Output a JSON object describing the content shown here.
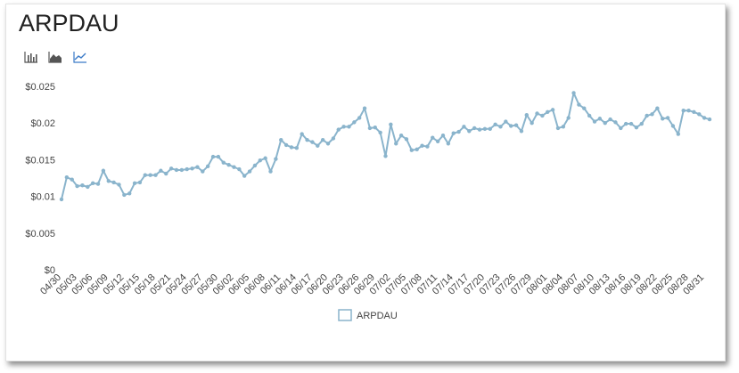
{
  "title": "ARPDAU",
  "toolbar": {
    "icons": [
      "bar-chart-icon",
      "area-chart-icon",
      "line-chart-icon"
    ],
    "active": "line-chart-icon",
    "icon_color": "#555555",
    "active_color": "#3a7ac7"
  },
  "chart_data": {
    "type": "line",
    "title": "ARPDAU",
    "xlabel": "",
    "ylabel": "",
    "ylim": [
      0,
      0.025
    ],
    "yticks": [
      {
        "value": 0,
        "label": "$0"
      },
      {
        "value": 0.005,
        "label": "$0.005"
      },
      {
        "value": 0.01,
        "label": "$0.01"
      },
      {
        "value": 0.015,
        "label": "$0.015"
      },
      {
        "value": 0.02,
        "label": "$0.02"
      },
      {
        "value": 0.025,
        "label": "$0.025"
      }
    ],
    "grid": false,
    "legend": "bottom-center",
    "line_color": "#8ab4cc",
    "x": [
      "04/30",
      "05/01",
      "05/02",
      "05/03",
      "05/04",
      "05/05",
      "05/06",
      "05/07",
      "05/08",
      "05/09",
      "05/10",
      "05/11",
      "05/12",
      "05/13",
      "05/14",
      "05/15",
      "05/16",
      "05/17",
      "05/18",
      "05/19",
      "05/20",
      "05/21",
      "05/22",
      "05/23",
      "05/24",
      "05/25",
      "05/26",
      "05/27",
      "05/28",
      "05/29",
      "05/30",
      "05/31",
      "06/01",
      "06/02",
      "06/03",
      "06/04",
      "06/05",
      "06/06",
      "06/07",
      "06/08",
      "06/09",
      "06/10",
      "06/11",
      "06/12",
      "06/13",
      "06/14",
      "06/15",
      "06/16",
      "06/17",
      "06/18",
      "06/19",
      "06/20",
      "06/21",
      "06/22",
      "06/23",
      "06/24",
      "06/25",
      "06/26",
      "06/27",
      "06/28",
      "06/29",
      "06/30",
      "07/01",
      "07/02",
      "07/03",
      "07/04",
      "07/05",
      "07/06",
      "07/07",
      "07/08",
      "07/09",
      "07/10",
      "07/11",
      "07/12",
      "07/13",
      "07/14",
      "07/15",
      "07/16",
      "07/17",
      "07/18",
      "07/19",
      "07/20",
      "07/21",
      "07/22",
      "07/23",
      "07/24",
      "07/25",
      "07/26",
      "07/27",
      "07/28",
      "07/29",
      "07/30",
      "07/31",
      "08/01",
      "08/02",
      "08/03",
      "08/04",
      "08/05",
      "08/06",
      "08/07",
      "08/08",
      "08/09",
      "08/10",
      "08/11",
      "08/12",
      "08/13",
      "08/14",
      "08/15",
      "08/16",
      "08/17",
      "08/18",
      "08/19",
      "08/20",
      "08/21",
      "08/22",
      "08/23",
      "08/24",
      "08/25",
      "08/26",
      "08/27",
      "08/28",
      "08/29",
      "08/30",
      "08/31",
      "09/01"
    ],
    "xtick_labels": [
      "04/30",
      "05/03",
      "05/06",
      "05/09",
      "05/12",
      "05/15",
      "05/18",
      "05/21",
      "05/24",
      "05/27",
      "05/30",
      "06/02",
      "06/05",
      "06/08",
      "06/11",
      "06/14",
      "06/17",
      "06/20",
      "06/23",
      "06/26",
      "06/29",
      "07/02",
      "07/05",
      "07/08",
      "07/11",
      "07/14",
      "07/17",
      "07/20",
      "07/23",
      "07/26",
      "07/29",
      "08/01",
      "08/04",
      "08/07",
      "08/10",
      "08/13",
      "08/16",
      "08/19",
      "08/22",
      "08/25",
      "08/28",
      "08/31"
    ],
    "series": [
      {
        "name": "ARPDAU",
        "values": [
          0.0096,
          0.0126,
          0.0123,
          0.0114,
          0.0115,
          0.0113,
          0.0118,
          0.0117,
          0.0135,
          0.0121,
          0.0119,
          0.0116,
          0.0102,
          0.0104,
          0.0118,
          0.0119,
          0.0129,
          0.0129,
          0.0129,
          0.0135,
          0.0131,
          0.0138,
          0.0136,
          0.0136,
          0.0137,
          0.0138,
          0.014,
          0.0134,
          0.0141,
          0.0154,
          0.0154,
          0.0146,
          0.0143,
          0.014,
          0.0137,
          0.0128,
          0.0134,
          0.0142,
          0.0149,
          0.0152,
          0.0134,
          0.0151,
          0.0177,
          0.017,
          0.0167,
          0.0166,
          0.0185,
          0.0177,
          0.0174,
          0.0169,
          0.0177,
          0.0172,
          0.0179,
          0.0191,
          0.0195,
          0.0195,
          0.0201,
          0.0207,
          0.022,
          0.0193,
          0.0194,
          0.0187,
          0.0155,
          0.0198,
          0.0172,
          0.0183,
          0.0178,
          0.0163,
          0.0164,
          0.0169,
          0.0168,
          0.018,
          0.0175,
          0.0183,
          0.0172,
          0.0186,
          0.0188,
          0.0195,
          0.0189,
          0.0193,
          0.0191,
          0.0192,
          0.0192,
          0.0198,
          0.0195,
          0.0202,
          0.0196,
          0.0197,
          0.0189,
          0.0211,
          0.02,
          0.0213,
          0.021,
          0.0215,
          0.0218,
          0.0193,
          0.0195,
          0.0207,
          0.0241,
          0.0225,
          0.022,
          0.021,
          0.0202,
          0.0206,
          0.02,
          0.0205,
          0.0201,
          0.0193,
          0.0199,
          0.0199,
          0.0194,
          0.0199,
          0.021,
          0.0212,
          0.022,
          0.0206,
          0.0207,
          0.0196,
          0.0185,
          0.0217,
          0.0217,
          0.0215,
          0.0212,
          0.0207,
          0.0205
        ]
      }
    ]
  }
}
